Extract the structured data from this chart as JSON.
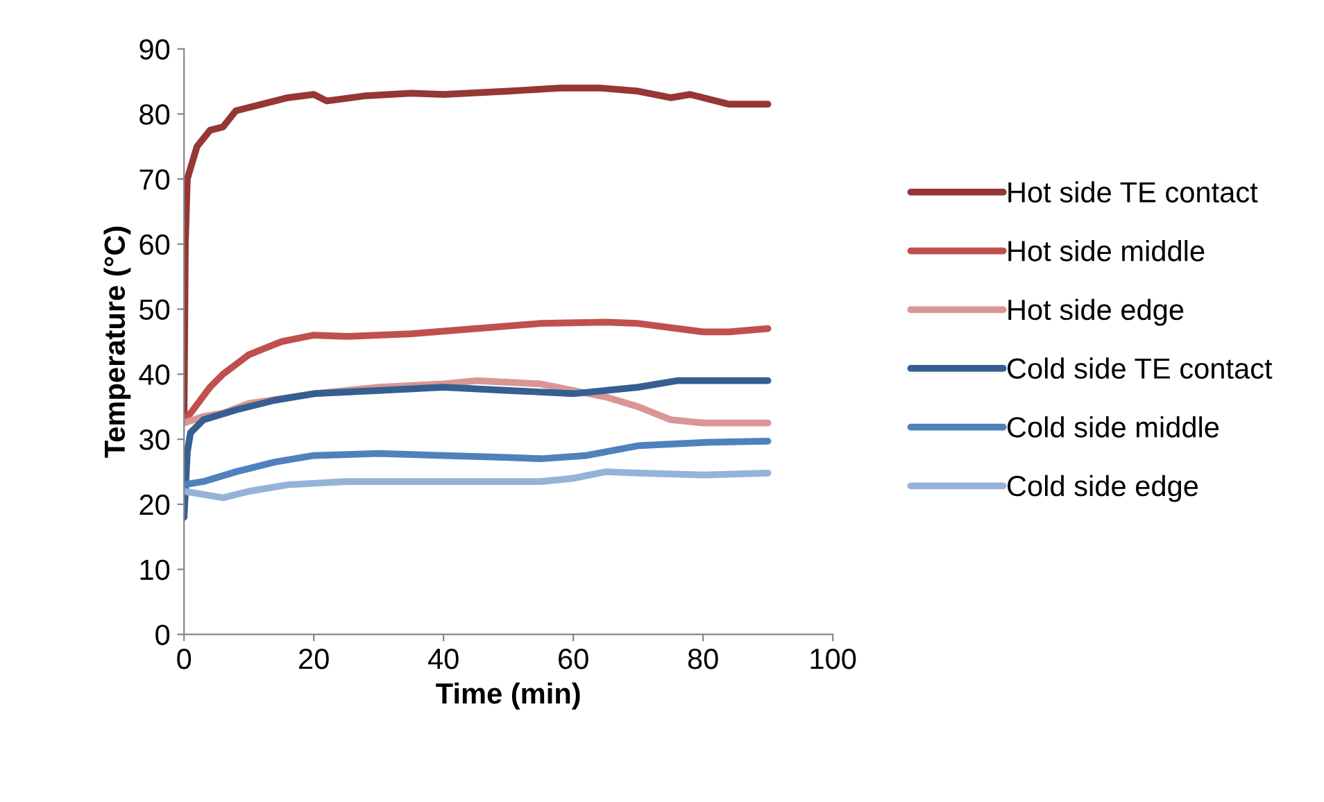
{
  "chart_data": {
    "type": "line",
    "xlabel": "Time (min)",
    "ylabel": "Temperature (°C)",
    "xlim": [
      0,
      100
    ],
    "xticks": [
      0,
      20,
      40,
      60,
      80,
      100
    ],
    "ylim": [
      0,
      90
    ],
    "yticks": [
      0,
      10,
      20,
      30,
      40,
      50,
      60,
      70,
      80,
      90
    ],
    "grid": false,
    "legend": "right",
    "marker": "none",
    "line_style": "solid",
    "series": [
      {
        "name": "Hot side TE contact",
        "color": "#953735",
        "x": [
          0,
          0.2,
          0.5,
          2,
          4,
          6,
          8,
          12,
          16,
          20,
          22,
          28,
          35,
          40,
          50,
          58,
          64,
          70,
          75,
          78,
          84,
          90
        ],
        "values": [
          33,
          60,
          70,
          75,
          77.5,
          78,
          80.5,
          81.5,
          82.5,
          83,
          82,
          82.8,
          83.2,
          83,
          83.5,
          84,
          84,
          83.5,
          82.5,
          83,
          81.5,
          81.5
        ]
      },
      {
        "name": "Hot side middle",
        "color": "#c0504d",
        "x": [
          0,
          1,
          4,
          6,
          10,
          15,
          20,
          25,
          35,
          45,
          55,
          65,
          70,
          80,
          84,
          90
        ],
        "values": [
          33,
          34,
          38,
          40,
          43,
          45,
          46,
          45.8,
          46.2,
          47,
          47.8,
          48,
          47.8,
          46.5,
          46.5,
          47
        ]
      },
      {
        "name": "Hot side edge",
        "color": "#d99694",
        "x": [
          0,
          3,
          6,
          10,
          20,
          30,
          40,
          45,
          55,
          65,
          70,
          75,
          80,
          90
        ],
        "values": [
          32.5,
          33.5,
          34,
          35.5,
          37,
          38,
          38.5,
          39,
          38.5,
          36.5,
          35,
          33,
          32.5,
          32.5
        ]
      },
      {
        "name": "Cold side TE contact",
        "color": "#365f91",
        "x": [
          0,
          0.5,
          1,
          3,
          8,
          14,
          20,
          30,
          40,
          50,
          60,
          70,
          76,
          90
        ],
        "values": [
          18,
          28,
          31,
          33,
          34.5,
          36,
          37,
          37.5,
          38,
          37.5,
          37,
          38,
          39,
          39
        ]
      },
      {
        "name": "Cold side middle",
        "color": "#4f81bd",
        "x": [
          0,
          3,
          8,
          14,
          20,
          30,
          40,
          50,
          55,
          62,
          70,
          80,
          90
        ],
        "values": [
          23,
          23.5,
          25,
          26.5,
          27.5,
          27.8,
          27.5,
          27.2,
          27,
          27.5,
          29,
          29.5,
          29.7
        ]
      },
      {
        "name": "Cold side edge",
        "color": "#95b3d7",
        "x": [
          0,
          3,
          6,
          10,
          16,
          25,
          40,
          55,
          60,
          65,
          70,
          80,
          90
        ],
        "values": [
          22,
          21.5,
          21,
          22,
          23,
          23.5,
          23.5,
          23.5,
          24,
          25,
          24.8,
          24.5,
          24.8
        ]
      }
    ]
  }
}
